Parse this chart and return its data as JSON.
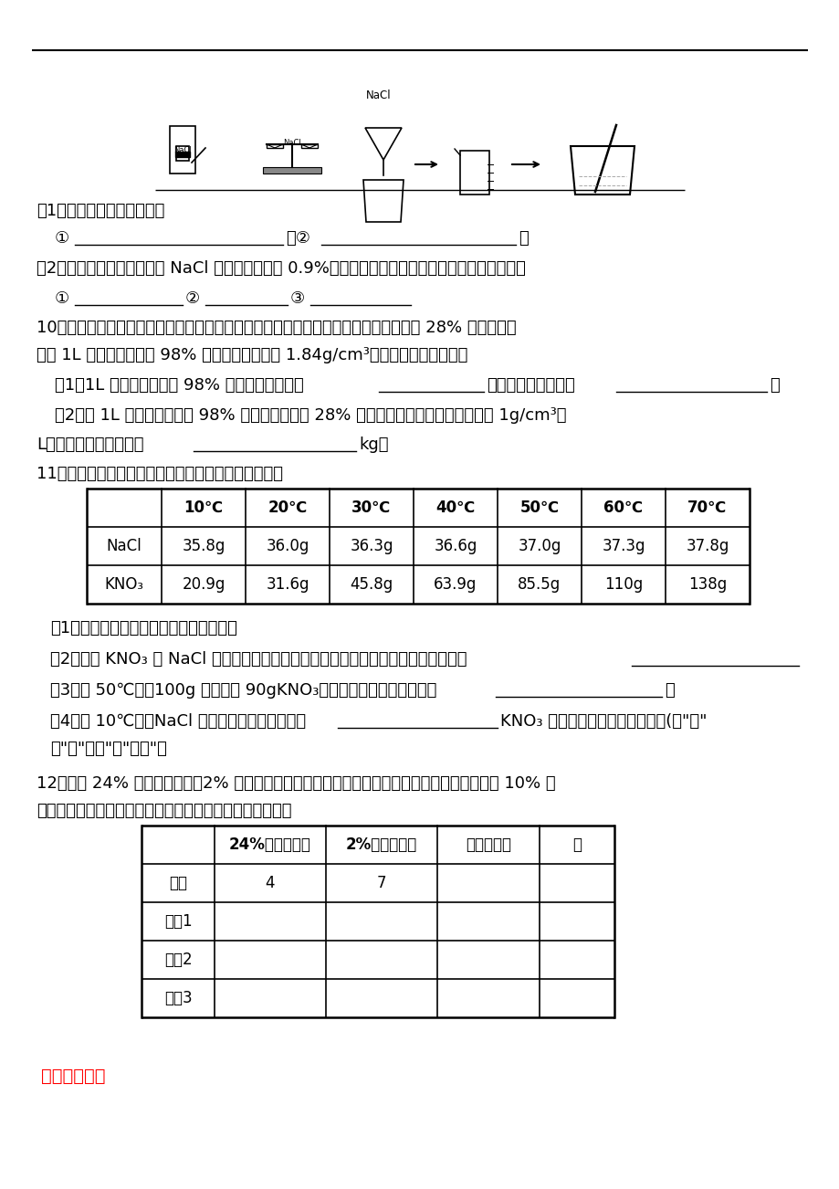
{
  "bg_color": "#ffffff",
  "text_color": "#000000",
  "line_color": "#000000",
  "section9_text1": "（1）请找出上图中的错误：",
  "section9_text3": "（2）如果配制的生理盐水中 NaCl 的质量分数小于 0.9%，则可能造成误差的原因有（至少举出三点）",
  "section10_title": "10、汽车、电机车一般要使用铅酸蓄电池。某铅酸蓄电池用的酸溶液是溶质质量分数为 28% 的稀硫酸，",
  "section10_line2": "现用 1L 溶质质量分数为 98% 的浓硫酸（密度为 1.84g/cm³）配制该稀硫酸。问：",
  "section11_title": "11、根据氯化钠和硝酸钾的溶解度表，回答下列问题：",
  "table1_headers": [
    "",
    "10℃",
    "20℃",
    "30℃",
    "40℃",
    "50℃",
    "60℃",
    "70℃"
  ],
  "table1_row1": [
    "NaCl",
    "35.8g",
    "36.0g",
    "36.3g",
    "36.6g",
    "37.0g",
    "37.3g",
    "37.8g"
  ],
  "table1_row2": [
    "KNO₃",
    "20.9g",
    "31.6g",
    "45.8g",
    "63.9g",
    "85.5g",
    "110g",
    "138g"
  ],
  "section11_q1": "（1）通过分析上表数据，你有哪些发现？",
  "section11_q2": "（2）写出 KNO₃ 和 NaCl 具有相同溶解度时的温度范围（限表中相邻两个温度之间）",
  "section11_q3": "（3）在 50℃时，100g 水中加入 90gKNO₃，充分搅拌所得溶液质量为",
  "section11_q4a": "（4）在 10℃时，NaCl 饱和溶液溶质的质量分数",
  "section11_q4b": "KNO₃ 饱和溶液溶质的质量分数。(填\"大\"",
  "section11_q4c": "于\"、\"等于\"或\"小于\"）",
  "section12_title": "12、现有 24% 的硝酸钾溶液、2% 的硝酸钾溶液、硝酸钾固体和水。请选用上述不同的物质配制 10% 的",
  "section12_line2": "硝酸钾溶液，将用量的最简整数比填入下表中相应的位置。",
  "table2_headers": [
    "",
    "24%硝酸钾溶液",
    "2%硝酸钾溶液",
    "硝酸钾固体",
    "水"
  ],
  "table2_row1": [
    "示例",
    "4",
    "7",
    "",
    ""
  ],
  "table2_row2": [
    "方案1",
    "",
    "",
    "",
    ""
  ],
  "table2_row3": [
    "方案2",
    "",
    "",
    "",
    ""
  ],
  "table2_row4": [
    "方案3",
    "",
    "",
    "",
    ""
  ],
  "reference_text": "【参考答案】",
  "reference_color": "#ff0000"
}
